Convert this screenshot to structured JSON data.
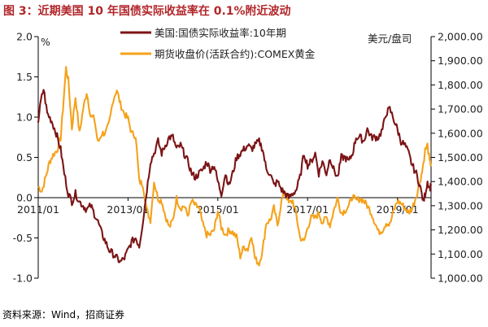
{
  "title": "图 3：近期美国 10 年国债实际收益率在 0.1%附近波动",
  "source": "资料来源：Wind，招商证券",
  "colors": {
    "title": "#b2262a",
    "real_yield": "#7b1416",
    "gold": "#f5a21b"
  },
  "chart_data": {
    "type": "line",
    "left_axis": {
      "unit": "%",
      "ticks": [
        "2.0",
        "1.5",
        "1.0",
        "0.5",
        "0.0",
        "-0.5",
        "-1.0"
      ],
      "range": [
        -1.0,
        2.0
      ]
    },
    "right_axis": {
      "unit": "美元/盘司",
      "ticks": [
        "2,000.00",
        "1,900.00",
        "1,800.00",
        "1,700.00",
        "1,600.00",
        "1,500.00",
        "1,400.00",
        "1,300.00",
        "1,200.00",
        "1,100.00",
        "1,000.00"
      ],
      "range": [
        1000,
        2000
      ]
    },
    "x_ticks": [
      "2011/01",
      "2013/01",
      "2015/01",
      "2017/01",
      "2019/01"
    ],
    "x_range": [
      2011.0,
      2019.75
    ],
    "series": [
      {
        "name": "美国:国债实际收益率:10年期",
        "axis": "left",
        "points": [
          [
            2011.0,
            0.95
          ],
          [
            2011.06,
            1.2
          ],
          [
            2011.12,
            1.35
          ],
          [
            2011.2,
            1.05
          ],
          [
            2011.3,
            0.95
          ],
          [
            2011.4,
            0.8
          ],
          [
            2011.5,
            0.6
          ],
          [
            2011.58,
            0.3
          ],
          [
            2011.67,
            0.05
          ],
          [
            2011.75,
            -0.05
          ],
          [
            2011.83,
            0.05
          ],
          [
            2011.92,
            -0.05
          ],
          [
            2012.0,
            -0.1
          ],
          [
            2012.08,
            -0.15
          ],
          [
            2012.17,
            -0.1
          ],
          [
            2012.25,
            -0.2
          ],
          [
            2012.33,
            -0.3
          ],
          [
            2012.42,
            -0.45
          ],
          [
            2012.5,
            -0.55
          ],
          [
            2012.58,
            -0.65
          ],
          [
            2012.67,
            -0.7
          ],
          [
            2012.75,
            -0.75
          ],
          [
            2012.83,
            -0.8
          ],
          [
            2012.92,
            -0.75
          ],
          [
            2013.0,
            -0.65
          ],
          [
            2013.08,
            -0.55
          ],
          [
            2013.17,
            -0.5
          ],
          [
            2013.25,
            -0.6
          ],
          [
            2013.33,
            -0.3
          ],
          [
            2013.42,
            0.1
          ],
          [
            2013.5,
            0.45
          ],
          [
            2013.58,
            0.55
          ],
          [
            2013.67,
            0.7
          ],
          [
            2013.75,
            0.55
          ],
          [
            2013.83,
            0.65
          ],
          [
            2013.92,
            0.75
          ],
          [
            2014.0,
            0.75
          ],
          [
            2014.08,
            0.6
          ],
          [
            2014.17,
            0.65
          ],
          [
            2014.25,
            0.55
          ],
          [
            2014.33,
            0.45
          ],
          [
            2014.42,
            0.3
          ],
          [
            2014.5,
            0.25
          ],
          [
            2014.58,
            0.3
          ],
          [
            2014.67,
            0.35
          ],
          [
            2014.75,
            0.45
          ],
          [
            2014.83,
            0.35
          ],
          [
            2014.92,
            0.4
          ],
          [
            2015.0,
            0.2
          ],
          [
            2015.08,
            0.05
          ],
          [
            2015.17,
            0.3
          ],
          [
            2015.25,
            0.15
          ],
          [
            2015.33,
            0.3
          ],
          [
            2015.42,
            0.5
          ],
          [
            2015.5,
            0.55
          ],
          [
            2015.58,
            0.6
          ],
          [
            2015.67,
            0.65
          ],
          [
            2015.75,
            0.6
          ],
          [
            2015.83,
            0.65
          ],
          [
            2015.92,
            0.7
          ],
          [
            2016.0,
            0.6
          ],
          [
            2016.08,
            0.35
          ],
          [
            2016.17,
            0.3
          ],
          [
            2016.25,
            0.15
          ],
          [
            2016.33,
            0.2
          ],
          [
            2016.42,
            0.1
          ],
          [
            2016.5,
            0.05
          ],
          [
            2016.58,
            0.0
          ],
          [
            2016.67,
            0.05
          ],
          [
            2016.75,
            0.1
          ],
          [
            2016.83,
            0.25
          ],
          [
            2016.92,
            0.55
          ],
          [
            2017.0,
            0.4
          ],
          [
            2017.08,
            0.45
          ],
          [
            2017.17,
            0.55
          ],
          [
            2017.25,
            0.3
          ],
          [
            2017.33,
            0.45
          ],
          [
            2017.42,
            0.3
          ],
          [
            2017.5,
            0.5
          ],
          [
            2017.58,
            0.35
          ],
          [
            2017.67,
            0.25
          ],
          [
            2017.75,
            0.5
          ],
          [
            2017.83,
            0.5
          ],
          [
            2017.92,
            0.45
          ],
          [
            2018.0,
            0.55
          ],
          [
            2018.08,
            0.75
          ],
          [
            2018.17,
            0.75
          ],
          [
            2018.25,
            0.7
          ],
          [
            2018.33,
            0.85
          ],
          [
            2018.42,
            0.75
          ],
          [
            2018.5,
            0.75
          ],
          [
            2018.58,
            0.75
          ],
          [
            2018.67,
            0.85
          ],
          [
            2018.75,
            1.05
          ],
          [
            2018.83,
            1.1
          ],
          [
            2018.9,
            1.0
          ],
          [
            2019.0,
            0.85
          ],
          [
            2019.08,
            0.7
          ],
          [
            2019.17,
            0.65
          ],
          [
            2019.25,
            0.55
          ],
          [
            2019.33,
            0.4
          ],
          [
            2019.42,
            0.3
          ],
          [
            2019.5,
            0.15
          ],
          [
            2019.58,
            -0.05
          ],
          [
            2019.62,
            0.05
          ],
          [
            2019.67,
            0.2
          ],
          [
            2019.72,
            0.12
          ],
          [
            2019.75,
            0.15
          ]
        ]
      },
      {
        "name": "期货收盘价(活跃合约):COMEX黄金",
        "axis": "right",
        "points": [
          [
            2011.0,
            1380
          ],
          [
            2011.08,
            1360
          ],
          [
            2011.17,
            1420
          ],
          [
            2011.25,
            1480
          ],
          [
            2011.33,
            1510
          ],
          [
            2011.42,
            1530
          ],
          [
            2011.5,
            1580
          ],
          [
            2011.55,
            1700
          ],
          [
            2011.62,
            1870
          ],
          [
            2011.67,
            1820
          ],
          [
            2011.75,
            1620
          ],
          [
            2011.83,
            1750
          ],
          [
            2011.92,
            1600
          ],
          [
            2012.0,
            1700
          ],
          [
            2012.08,
            1770
          ],
          [
            2012.17,
            1670
          ],
          [
            2012.25,
            1660
          ],
          [
            2012.33,
            1560
          ],
          [
            2012.42,
            1600
          ],
          [
            2012.5,
            1600
          ],
          [
            2012.58,
            1640
          ],
          [
            2012.67,
            1740
          ],
          [
            2012.75,
            1780
          ],
          [
            2012.83,
            1720
          ],
          [
            2012.92,
            1680
          ],
          [
            2013.0,
            1660
          ],
          [
            2013.08,
            1600
          ],
          [
            2013.17,
            1590
          ],
          [
            2013.25,
            1400
          ],
          [
            2013.33,
            1390
          ],
          [
            2013.42,
            1280
          ],
          [
            2013.5,
            1240
          ],
          [
            2013.58,
            1400
          ],
          [
            2013.67,
            1330
          ],
          [
            2013.75,
            1320
          ],
          [
            2013.83,
            1260
          ],
          [
            2013.92,
            1210
          ],
          [
            2014.0,
            1240
          ],
          [
            2014.08,
            1330
          ],
          [
            2014.17,
            1290
          ],
          [
            2014.25,
            1300
          ],
          [
            2014.33,
            1260
          ],
          [
            2014.42,
            1320
          ],
          [
            2014.5,
            1300
          ],
          [
            2014.58,
            1290
          ],
          [
            2014.67,
            1220
          ],
          [
            2014.75,
            1180
          ],
          [
            2014.83,
            1180
          ],
          [
            2014.92,
            1200
          ],
          [
            2015.0,
            1280
          ],
          [
            2015.08,
            1210
          ],
          [
            2015.17,
            1180
          ],
          [
            2015.25,
            1200
          ],
          [
            2015.33,
            1190
          ],
          [
            2015.42,
            1170
          ],
          [
            2015.5,
            1090
          ],
          [
            2015.58,
            1130
          ],
          [
            2015.67,
            1120
          ],
          [
            2015.75,
            1180
          ],
          [
            2015.83,
            1080
          ],
          [
            2015.92,
            1060
          ],
          [
            2016.0,
            1120
          ],
          [
            2016.08,
            1230
          ],
          [
            2016.17,
            1240
          ],
          [
            2016.25,
            1290
          ],
          [
            2016.33,
            1220
          ],
          [
            2016.42,
            1320
          ],
          [
            2016.5,
            1360
          ],
          [
            2016.58,
            1310
          ],
          [
            2016.67,
            1320
          ],
          [
            2016.75,
            1260
          ],
          [
            2016.83,
            1170
          ],
          [
            2016.92,
            1150
          ],
          [
            2017.0,
            1210
          ],
          [
            2017.08,
            1250
          ],
          [
            2017.17,
            1250
          ],
          [
            2017.25,
            1270
          ],
          [
            2017.33,
            1230
          ],
          [
            2017.42,
            1250
          ],
          [
            2017.5,
            1220
          ],
          [
            2017.58,
            1280
          ],
          [
            2017.67,
            1330
          ],
          [
            2017.75,
            1270
          ],
          [
            2017.83,
            1280
          ],
          [
            2017.92,
            1300
          ],
          [
            2018.0,
            1340
          ],
          [
            2018.08,
            1320
          ],
          [
            2018.17,
            1330
          ],
          [
            2018.25,
            1320
          ],
          [
            2018.33,
            1300
          ],
          [
            2018.42,
            1270
          ],
          [
            2018.5,
            1230
          ],
          [
            2018.58,
            1190
          ],
          [
            2018.67,
            1200
          ],
          [
            2018.75,
            1230
          ],
          [
            2018.83,
            1220
          ],
          [
            2018.92,
            1280
          ],
          [
            2019.0,
            1320
          ],
          [
            2019.08,
            1310
          ],
          [
            2019.17,
            1290
          ],
          [
            2019.25,
            1270
          ],
          [
            2019.33,
            1290
          ],
          [
            2019.42,
            1340
          ],
          [
            2019.5,
            1400
          ],
          [
            2019.55,
            1440
          ],
          [
            2019.62,
            1530
          ],
          [
            2019.67,
            1550
          ],
          [
            2019.72,
            1480
          ],
          [
            2019.75,
            1470
          ]
        ]
      }
    ]
  }
}
